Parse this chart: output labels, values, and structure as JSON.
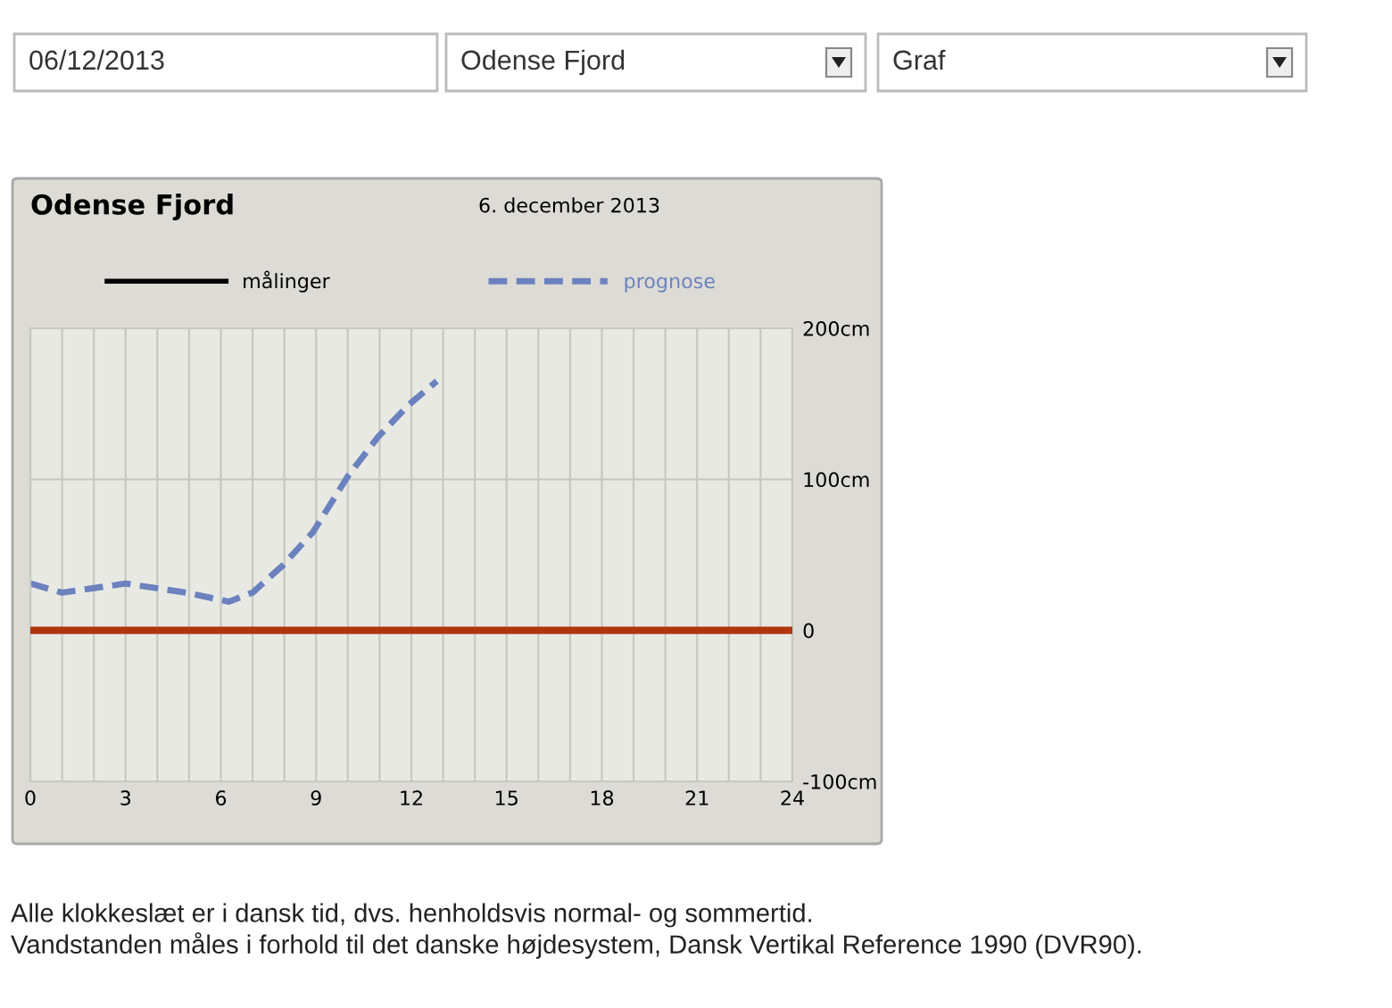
{
  "chart_data": {
    "type": "line",
    "title": "Odense Fjord",
    "subtitle": "6. december 2013",
    "x": [
      0,
      1,
      3,
      4.9,
      6.25,
      7,
      7.95,
      8.9,
      10,
      10.95,
      11.9,
      12.8
    ],
    "series": [
      {
        "name": "målinger",
        "color": "#000000",
        "line_style": "solid",
        "values": [
          null,
          null,
          null,
          null,
          null,
          null,
          null,
          null,
          null,
          null,
          null,
          null
        ]
      },
      {
        "name": "prognose",
        "color": "#6b82bf",
        "line_style": "dashed",
        "values": [
          31,
          25,
          31,
          25,
          19,
          25,
          43,
          65,
          102,
          128,
          149,
          165
        ]
      }
    ],
    "xlim": [
      0,
      24
    ],
    "xticks": [
      0,
      {
        "value": 1,
        "label": null
      },
      {
        "value": 2,
        "label": null
      },
      3,
      {
        "value": 4,
        "label": null
      },
      {
        "value": 5,
        "label": null
      },
      6,
      {
        "value": 7,
        "label": null
      },
      {
        "value": 8,
        "label": null
      },
      9,
      {
        "value": 10,
        "label": null
      },
      {
        "value": 11,
        "label": null
      },
      12,
      {
        "value": 13,
        "label": null
      },
      {
        "value": 14,
        "label": null
      },
      15,
      {
        "value": 16,
        "label": null
      },
      {
        "value": 17,
        "label": null
      },
      18,
      {
        "value": 19,
        "label": null
      },
      {
        "value": 20,
        "label": null
      },
      21,
      {
        "value": 22,
        "label": null
      },
      {
        "value": 23,
        "label": null
      },
      24
    ],
    "ylim": [
      -100,
      200
    ],
    "yticks": [
      {
        "value": -100,
        "label": "-100cm"
      },
      0,
      {
        "value": 100,
        "label": "100cm"
      },
      {
        "value": 200,
        "label": "200cm"
      }
    ],
    "ref_lines": [
      {
        "axis": "y",
        "value": 0,
        "color": "#b0360f",
        "line_style": "solid"
      }
    ],
    "grid": true,
    "legend": "top",
    "marker": "none",
    "annotations": [
      "06/12/2013",
      "Odense Fjord",
      "Graf",
      "Alle klokkeslæt er i dansk tid, dvs. henholdsvis normal- og sommertid.",
      "Vandstanden måles i forhold til det danske højdesystem, Dansk Vertikal Reference 1990 (DVR90)."
    ]
  }
}
